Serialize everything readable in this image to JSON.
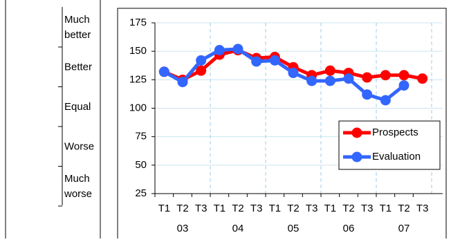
{
  "scale": {
    "labels": [
      [
        "Much",
        "better"
      ],
      [
        "Better"
      ],
      [
        "Equal"
      ],
      [
        "Worse"
      ],
      [
        "Much",
        "worse"
      ]
    ]
  },
  "chart_data": {
    "type": "line",
    "categories": [
      "T1",
      "T2",
      "T3",
      "T1",
      "T2",
      "T3",
      "T1",
      "T2",
      "T3",
      "T1",
      "T2",
      "T3",
      "T1",
      "T2",
      "T3"
    ],
    "groups": [
      "03",
      "04",
      "05",
      "06",
      "07"
    ],
    "series": [
      {
        "name": "Prospects",
        "color": "#ff0000",
        "values": [
          132,
          125,
          133,
          147,
          151,
          144,
          145,
          136,
          129,
          133,
          131,
          127,
          129,
          129,
          126
        ]
      },
      {
        "name": "Evaluation",
        "color": "#3366ff",
        "values": [
          132,
          123,
          142,
          151,
          152,
          141,
          142,
          131,
          124,
          124,
          126,
          112,
          107,
          120,
          null
        ]
      }
    ],
    "ylim": [
      25,
      175
    ],
    "yticks": [
      25,
      50,
      75,
      100,
      125,
      150,
      175
    ],
    "grid": true,
    "legend": "lower right"
  }
}
